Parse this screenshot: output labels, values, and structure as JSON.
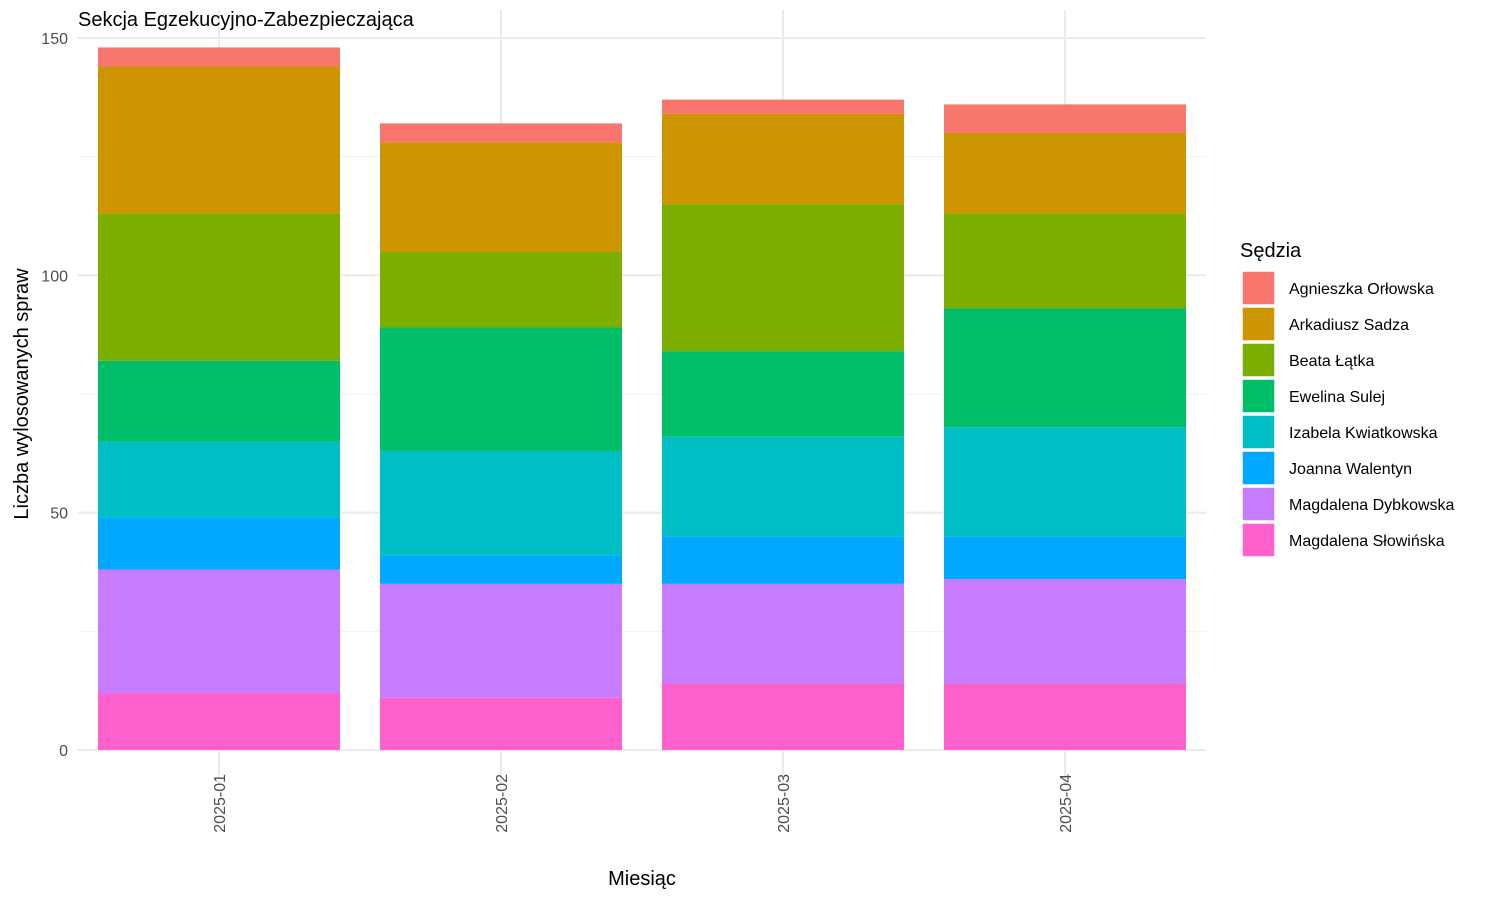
{
  "chart_data": {
    "type": "bar",
    "stacked": true,
    "title": "Sekcja Egzekucyjno-Zabezpieczająca",
    "xlabel": "Miesiąc",
    "ylabel": "Liczba wylosowanych spraw",
    "categories": [
      "2025-01",
      "2025-02",
      "2025-03",
      "2025-04"
    ],
    "ylim": [
      0,
      157
    ],
    "yticks": [
      0,
      50,
      100,
      150
    ],
    "grid": true,
    "legend": {
      "title": "Sędzia",
      "position": "right"
    },
    "series": [
      {
        "name": "Magdalena Słowińska",
        "color": "#FF61CC",
        "values": [
          12,
          11,
          14,
          14
        ]
      },
      {
        "name": "Magdalena Dybkowska",
        "color": "#C77CFF",
        "values": [
          26,
          24,
          21,
          22
        ]
      },
      {
        "name": "Joanna Walentyn",
        "color": "#00A9FF",
        "values": [
          11,
          6,
          10,
          9
        ]
      },
      {
        "name": "Izabela Kwiatkowska",
        "color": "#00BFC4",
        "values": [
          16,
          22,
          21,
          23
        ]
      },
      {
        "name": "Ewelina Sulej",
        "color": "#00BE67",
        "values": [
          17,
          26,
          18,
          25
        ]
      },
      {
        "name": "Beata Łątka",
        "color": "#7CAE00",
        "values": [
          31,
          16,
          31,
          20
        ]
      },
      {
        "name": "Arkadiusz Sadza",
        "color": "#CD9600",
        "values": [
          31,
          23,
          19,
          17
        ]
      },
      {
        "name": "Agnieszka Orłowska",
        "color": "#F8766D",
        "values": [
          4,
          4,
          3,
          6
        ]
      }
    ],
    "legend_order": [
      "Agnieszka Orłowska",
      "Arkadiusz Sadza",
      "Beata Łątka",
      "Ewelina Sulej",
      "Izabela Kwiatkowska",
      "Joanna Walentyn",
      "Magdalena Dybkowska",
      "Magdalena Słowińska"
    ]
  }
}
